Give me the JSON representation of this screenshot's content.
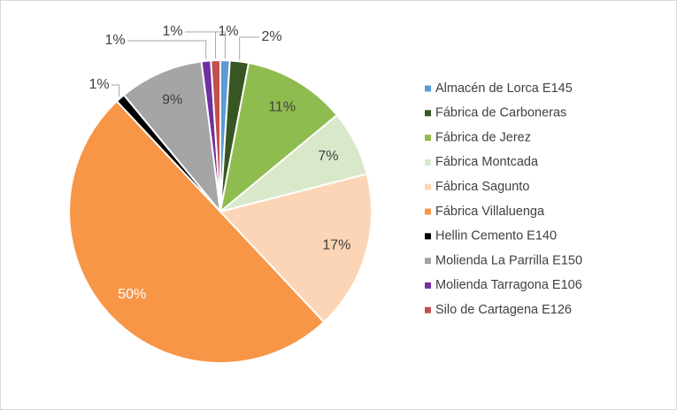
{
  "chart_data": {
    "type": "pie",
    "categories": [
      "Almacén de Lorca E145",
      "Fábrica de Carboneras",
      "Fábrica de Jerez",
      "Fábrica Montcada",
      "Fábrica Sagunto",
      "Fábrica Villaluenga",
      "Hellin Cemento E140",
      "Molienda La Parrilla E150",
      "Molienda Tarragona E106",
      "Silo de Cartagena E126"
    ],
    "values": [
      1,
      2,
      11,
      7,
      17,
      50,
      1,
      9,
      1,
      1
    ],
    "value_labels": [
      "1%",
      "2%",
      "11%",
      "7%",
      "17%",
      "50%",
      "1%",
      "9%",
      "1%",
      "1%"
    ],
    "colors": [
      "#5b9bd5",
      "#375623",
      "#8fbc4f",
      "#d9e8c9",
      "#fbd5b5",
      "#f79646",
      "#000000",
      "#a5a5a5",
      "#7030a0",
      "#c0504d"
    ],
    "legend": "right"
  }
}
